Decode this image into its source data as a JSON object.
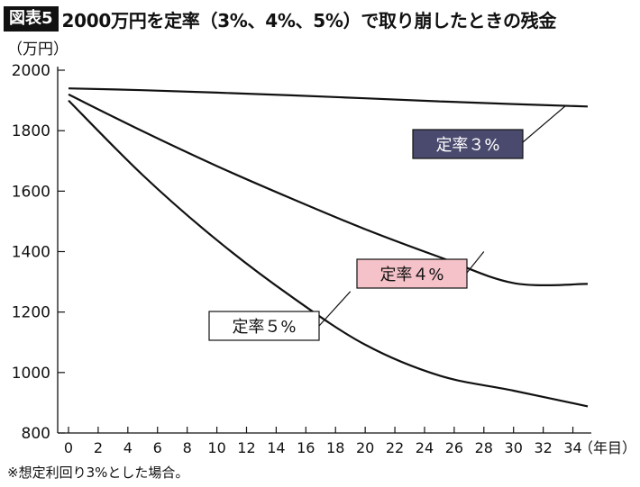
{
  "header": {
    "badge": "図表5",
    "title": "2000万円を定率（3%、4%、5%）で取り崩したときの残金"
  },
  "chart_data": {
    "type": "line",
    "ylabel": "（万円）",
    "xlabel": "（年目）",
    "ylim": [
      800,
      2000
    ],
    "xlim": [
      0,
      35
    ],
    "y_ticks": [
      800,
      1000,
      1200,
      1400,
      1600,
      1800,
      2000
    ],
    "x_ticks": [
      0,
      2,
      4,
      6,
      8,
      10,
      12,
      14,
      16,
      18,
      20,
      22,
      24,
      26,
      28,
      30,
      32,
      34
    ],
    "grid": false,
    "x": [
      0,
      5,
      10,
      15,
      20,
      25,
      30,
      35
    ],
    "series": [
      {
        "name": "定率３%",
        "values": [
          1940,
          1934,
          1926,
          1917,
          1907,
          1897,
          1888,
          1880
        ],
        "label_style": "dark"
      },
      {
        "name": "定率４%",
        "values": [
          1920,
          1798,
          1683,
          1576,
          1474,
          1382,
          1296,
          1293
        ],
        "label_style": "pink"
      },
      {
        "name": "定率５%",
        "values": [
          1900,
          1653,
          1438,
          1252,
          1092,
          990,
          940,
          888
        ],
        "label_style": "white"
      }
    ]
  },
  "footnote": "※想定利回り3%とした場合。",
  "colors": {
    "line": "#111111",
    "label_dark_bg": "#4a4a6e",
    "label_pink_bg": "#f4c2c8",
    "label_white_bg": "#ffffff"
  }
}
